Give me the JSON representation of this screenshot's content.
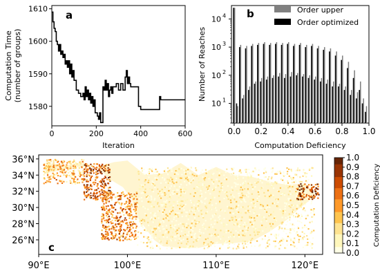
{
  "chart_data": [
    {
      "type": "line",
      "panel_label": "a",
      "title": "",
      "xlabel": "Iteration",
      "ylabel": "Computation Time\n(number of groups)",
      "xlim": [
        0,
        600
      ],
      "ylim": [
        1574,
        1611
      ],
      "xticks": [
        0,
        200,
        400,
        600
      ],
      "yticks": [
        1580,
        1590,
        1600,
        1610
      ],
      "grid": false,
      "series": [
        {
          "color": "#000000",
          "x": [
            0,
            5,
            10,
            15,
            20,
            25,
            30,
            35,
            40,
            45,
            50,
            55,
            60,
            65,
            70,
            75,
            80,
            85,
            90,
            95,
            100,
            110,
            120,
            130,
            140,
            145,
            150,
            155,
            160,
            165,
            170,
            175,
            180,
            185,
            190,
            195,
            200,
            205,
            210,
            215,
            220,
            225,
            230,
            235,
            240,
            245,
            250,
            255,
            260,
            265,
            270,
            275,
            280,
            290,
            300,
            310,
            320,
            330,
            335,
            340,
            345,
            350,
            355,
            360,
            370,
            380,
            390,
            400,
            420,
            440,
            460,
            480,
            485,
            490,
            500,
            520,
            540,
            560,
            580,
            600
          ],
          "y": [
            1609,
            1606,
            1604,
            1603,
            1600,
            1599,
            1597,
            1599,
            1596,
            1597,
            1595,
            1596,
            1593,
            1594,
            1592,
            1594,
            1590,
            1593,
            1589,
            1591,
            1588,
            1585,
            1584,
            1583,
            1584,
            1582,
            1586,
            1583,
            1585,
            1582,
            1584,
            1581,
            1583,
            1580,
            1582,
            1578,
            1578,
            1577,
            1576,
            1578,
            1575,
            1575,
            1586,
            1585,
            1588,
            1585,
            1587,
            1583,
            1585,
            1586,
            1584,
            1586,
            1586,
            1587,
            1585,
            1587,
            1585,
            1589,
            1591,
            1587,
            1589,
            1587,
            1586,
            1586,
            1586,
            1586,
            1580,
            1579,
            1579,
            1579,
            1579,
            1579,
            1583,
            1582,
            1582,
            1582,
            1582,
            1582,
            1582,
            1582
          ]
        }
      ]
    },
    {
      "type": "bar",
      "panel_label": "b",
      "title": "",
      "xlabel": "Computation Deficiency",
      "ylabel": "Number of Reaches",
      "xlim": [
        -0.02,
        1.0
      ],
      "ylim_log": [
        2,
        30000
      ],
      "yscale": "log",
      "xticks": [
        "0.0",
        "0.2",
        "0.4",
        "0.6",
        "0.8",
        "1.0"
      ],
      "yticks": [
        "10^1",
        "10^2",
        "10^3",
        "10^4"
      ],
      "legend_position": "top-right",
      "bin_width": 0.0222,
      "x": [
        0.0,
        0.0222,
        0.0444,
        0.0667,
        0.0889,
        0.1111,
        0.1333,
        0.1556,
        0.1778,
        0.2,
        0.2222,
        0.2444,
        0.2667,
        0.2889,
        0.3111,
        0.3333,
        0.3556,
        0.3778,
        0.4,
        0.4222,
        0.4444,
        0.4667,
        0.4889,
        0.5111,
        0.5333,
        0.5556,
        0.5778,
        0.6,
        0.6222,
        0.6444,
        0.6667,
        0.6889,
        0.7111,
        0.7333,
        0.7556,
        0.7778,
        0.8,
        0.8222,
        0.8444,
        0.8667,
        0.8889,
        0.9111,
        0.9333,
        0.9556,
        0.9778
      ],
      "series": [
        {
          "name": "Order upper",
          "color": "#808080",
          "values": [
            25000,
            8,
            1200,
            20,
            1100,
            40,
            1300,
            60,
            1400,
            80,
            1500,
            90,
            1400,
            100,
            1500,
            120,
            1400,
            110,
            1500,
            130,
            1300,
            120,
            1400,
            110,
            1200,
            100,
            1300,
            90,
            1100,
            80,
            1000,
            70,
            900,
            60,
            700,
            50,
            500,
            40,
            300,
            30,
            150,
            25,
            60,
            15,
            8
          ]
        },
        {
          "name": "Order optimized",
          "color": "#000000",
          "values": [
            25000,
            10,
            1000,
            15,
            900,
            30,
            1100,
            50,
            1200,
            60,
            1300,
            70,
            1200,
            80,
            1300,
            90,
            1200,
            80,
            1300,
            90,
            1100,
            100,
            1200,
            90,
            1000,
            80,
            1100,
            70,
            900,
            60,
            800,
            50,
            700,
            40,
            500,
            40,
            350,
            30,
            180,
            20,
            80,
            15,
            30,
            10,
            5
          ]
        }
      ]
    },
    {
      "type": "heatmap",
      "panel_label": "c",
      "title": "",
      "xlabel": "",
      "ylabel": "",
      "xlim": [
        90,
        122
      ],
      "ylim": [
        24.2,
        36.5
      ],
      "xticks": [
        "90°E",
        "100°E",
        "110°E",
        "120°E"
      ],
      "yticks": [
        "26°N",
        "28°N",
        "30°N",
        "32°N",
        "34°N",
        "36°N"
      ],
      "colorbar": {
        "label": "Computation Deficiency",
        "range": [
          0.0,
          1.0
        ],
        "ticks": [
          "0.0",
          "0.1",
          "0.2",
          "0.3",
          "0.4",
          "0.5",
          "0.6",
          "0.7",
          "0.8",
          "0.9",
          "1.0"
        ],
        "colormap": "YlOrBr"
      },
      "description_regions": [
        {
          "lon_range": [
            90.5,
            95
          ],
          "lat_range": [
            33,
            36
          ],
          "level": 0.4
        },
        {
          "lon_range": [
            95,
            98
          ],
          "lat_range": [
            31,
            35.5
          ],
          "level": 0.7
        },
        {
          "lon_range": [
            97,
            101
          ],
          "lat_range": [
            26,
            32
          ],
          "level": 0.55
        },
        {
          "lon_range": [
            101,
            121
          ],
          "lat_range": [
            25,
            35
          ],
          "level": 0.1
        },
        {
          "lon_range": [
            119,
            121.5
          ],
          "lat_range": [
            31,
            33
          ],
          "level": 0.8
        }
      ]
    }
  ]
}
